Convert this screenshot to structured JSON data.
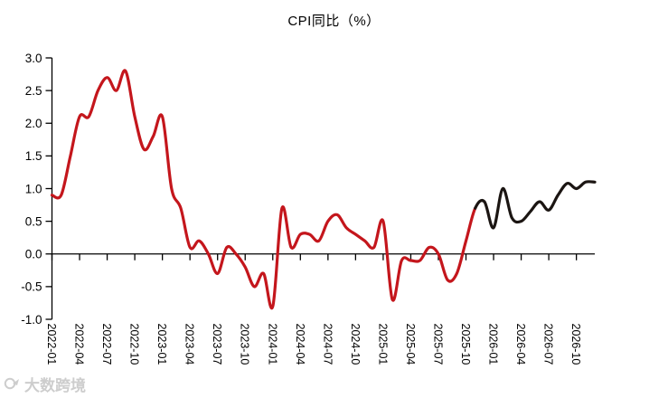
{
  "title": "CPI同比（%）",
  "watermark": {
    "text": "大数跨境"
  },
  "colors": {
    "actual_line": "#c4161c",
    "forecast_line": "#1b1512",
    "axis": "#000000",
    "watermark": "#cdcdcd"
  },
  "chart_data": {
    "type": "line",
    "title": "CPI同比（%）",
    "xlabel": "",
    "ylabel": "",
    "ylim": [
      -1.0,
      3.0
    ],
    "y_tick_labels": [
      "3.0",
      "2.5",
      "2.0",
      "1.5",
      "1.0",
      "0.5",
      "0.0",
      "-0.5",
      "-1.0"
    ],
    "x_tick_labels": [
      "2022-01",
      "2022-04",
      "2022-07",
      "2022-10",
      "2023-01",
      "2023-04",
      "2023-07",
      "2023-10",
      "2024-01",
      "2024-04",
      "2024-07",
      "2024-10",
      "2025-01",
      "2025-04",
      "2025-07",
      "2025-10",
      "2026-01",
      "2026-04",
      "2026-07",
      "2026-10"
    ],
    "x_range": [
      "2022-01",
      "2026-12"
    ],
    "grid": false,
    "legend": "none",
    "zero_axis_line": true,
    "series": [
      {
        "name": "actual",
        "color": "#c4161c",
        "x_start": "2022-01",
        "x_end": "2025-11",
        "values": [
          0.9,
          0.9,
          1.5,
          2.1,
          2.1,
          2.5,
          2.7,
          2.5,
          2.8,
          2.1,
          1.6,
          1.8,
          2.1,
          1.0,
          0.7,
          0.1,
          0.2,
          0.0,
          -0.3,
          0.1,
          0.0,
          -0.2,
          -0.5,
          -0.3,
          -0.8,
          0.7,
          0.1,
          0.3,
          0.3,
          0.2,
          0.5,
          0.6,
          0.4,
          0.3,
          0.2,
          0.1,
          0.5,
          -0.7,
          -0.1,
          -0.1,
          -0.1,
          0.1,
          0.0,
          -0.4,
          -0.3,
          0.2,
          0.7
        ]
      },
      {
        "name": "forecast",
        "color": "#1b1512",
        "x_start": "2025-11",
        "x_end": "2026-12",
        "values": [
          0.7,
          0.8,
          0.4,
          1.0,
          0.55,
          0.5,
          0.65,
          0.8,
          0.67,
          0.9,
          1.08,
          1.0,
          1.1,
          1.1
        ]
      }
    ]
  }
}
